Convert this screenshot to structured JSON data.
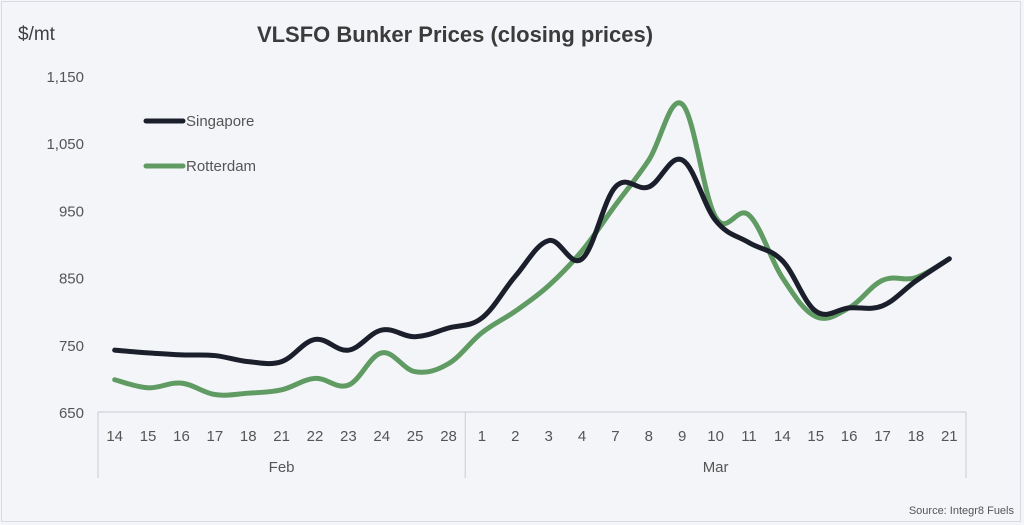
{
  "chart_data": {
    "type": "line",
    "title": "VLSFO Bunker Prices (closing prices)",
    "ylabel": "$/mt",
    "ylim": [
      650,
      1150
    ],
    "yticks": [
      "1,150",
      "1,050",
      "950",
      "850",
      "750",
      "650"
    ],
    "ytick_values": [
      1150,
      1050,
      950,
      850,
      750,
      650
    ],
    "categories": [
      "14",
      "15",
      "16",
      "17",
      "18",
      "21",
      "22",
      "23",
      "24",
      "25",
      "28",
      "1",
      "2",
      "3",
      "4",
      "7",
      "8",
      "9",
      "10",
      "11",
      "14",
      "15",
      "16",
      "17",
      "18",
      "21"
    ],
    "groups": [
      {
        "label": "Feb",
        "start": 0,
        "end": 10
      },
      {
        "label": "Mar",
        "start": 11,
        "end": 25
      }
    ],
    "series": [
      {
        "name": "Singapore",
        "color": "#1b1f2b",
        "values": [
          742,
          738,
          735,
          734,
          725,
          725,
          758,
          742,
          772,
          762,
          775,
          790,
          852,
          905,
          878,
          985,
          985,
          1025,
          935,
          902,
          875,
          800,
          805,
          808,
          845,
          878
        ]
      },
      {
        "name": "Rotterdam",
        "color": "#5f9b62",
        "values": [
          698,
          686,
          693,
          676,
          678,
          683,
          700,
          690,
          738,
          710,
          722,
          768,
          800,
          838,
          890,
          958,
          1025,
          1108,
          940,
          943,
          850,
          792,
          805,
          846,
          850,
          878
        ]
      }
    ],
    "legend_position": "top-left",
    "grid": false
  },
  "source": "Source: Integr8 Fuels"
}
